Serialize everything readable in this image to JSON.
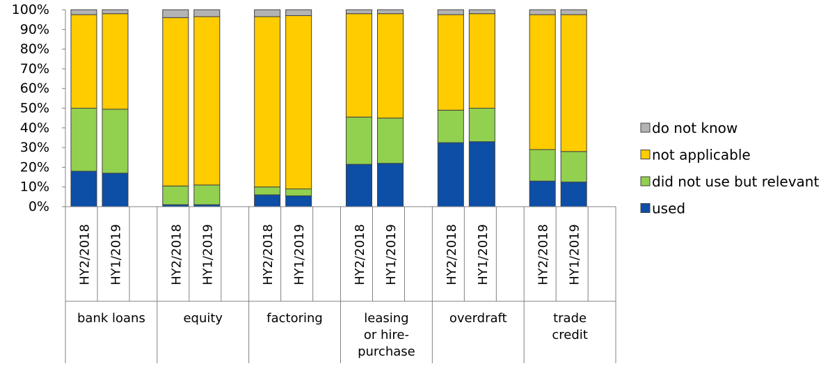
{
  "chart_data": {
    "type": "bar",
    "stacked": true,
    "percent": true,
    "groups": [
      {
        "label": "bank loans",
        "lines": [
          "bank loans"
        ]
      },
      {
        "label": "equity",
        "lines": [
          "equity"
        ]
      },
      {
        "label": "factoring",
        "lines": [
          "factoring"
        ]
      },
      {
        "label": "leasing or hire-purchase",
        "lines": [
          "leasing",
          "or hire-",
          "purchase"
        ]
      },
      {
        "label": "overdraft",
        "lines": [
          "overdraft"
        ]
      },
      {
        "label": "trade credit",
        "lines": [
          "trade",
          "credit"
        ]
      }
    ],
    "periods": [
      "HY2/2018",
      "HY1/2019"
    ],
    "series": [
      {
        "name": "used",
        "color": "#0d4ea6",
        "values": [
          18,
          17,
          1,
          1,
          6,
          5.5,
          21.5,
          22,
          32.5,
          33,
          13,
          12.5
        ]
      },
      {
        "name": "did not use but relevant",
        "color": "#92d050",
        "values": [
          32,
          32.5,
          9.5,
          10,
          4,
          3.5,
          24,
          23,
          16.5,
          17,
          16,
          15.5
        ]
      },
      {
        "name": "not applicable",
        "color": "#ffcc00",
        "values": [
          47.5,
          48.5,
          85.5,
          85.5,
          86.5,
          88,
          52.5,
          53,
          48.5,
          48,
          68.5,
          69.5
        ]
      },
      {
        "name": "do not know",
        "color": "#b3b3b3",
        "values": [
          2.5,
          2,
          4,
          3.5,
          3.5,
          3,
          2,
          2,
          2.5,
          2,
          2.5,
          2.5
        ]
      }
    ],
    "y_ticks": [
      "0%",
      "10%",
      "20%",
      "30%",
      "40%",
      "50%",
      "60%",
      "70%",
      "80%",
      "90%",
      "100%"
    ],
    "ylim": [
      0,
      100
    ],
    "legend_position": "right",
    "legend_order": [
      "do not know",
      "not applicable",
      "did not use but relevant",
      "used"
    ],
    "grid": false
  }
}
